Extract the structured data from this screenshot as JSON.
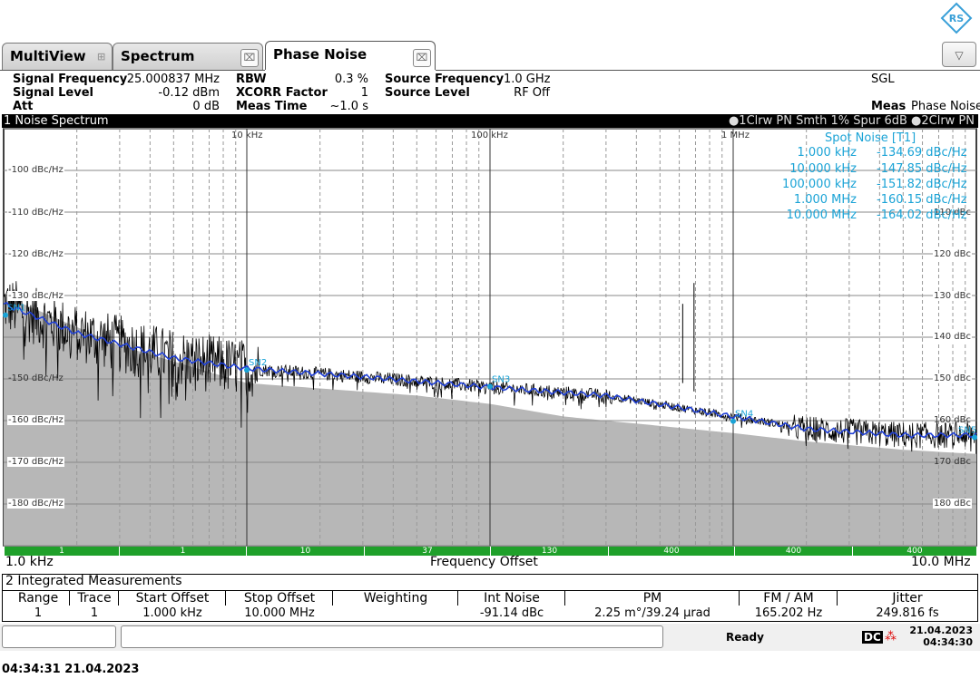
{
  "tabs": [
    {
      "label": "MultiView"
    },
    {
      "label": "Spectrum"
    },
    {
      "label": "Phase Noise"
    }
  ],
  "header": {
    "signal_frequency_label": "Signal Frequency",
    "signal_frequency_value": "25.000837 MHz",
    "signal_level_label": "Signal Level",
    "signal_level_value": "-0.12 dBm",
    "att_label": "Att",
    "att_value": "0 dB",
    "rbw_label": "RBW",
    "rbw_value": "0.3 %",
    "xcorr_label": "XCORR Factor",
    "xcorr_value": "1",
    "meas_time_label": "Meas Time",
    "meas_time_value": "~1.0 s",
    "source_frequency_label": "Source Frequency",
    "source_frequency_value": "1.0 GHz",
    "source_level_label": "Source Level",
    "source_level_value": "RF Off",
    "sgl": "SGL",
    "meas_label": "Meas",
    "meas_value": "Phase Noise"
  },
  "panel": {
    "title": "1 Noise Spectrum",
    "trace_legend": "●1Clrw PN Smth 1% Spur 6dB ●2Clrw PN"
  },
  "chart_data": {
    "type": "line",
    "xscale": "log",
    "xlim": [
      1000,
      10000000
    ],
    "ylim": [
      -190,
      -90
    ],
    "yunit": "dBc/Hz",
    "x_tick_labels": [
      "10 kHz",
      "100 kHz",
      "1 MHz"
    ],
    "y_tick_labels_left": [
      "-100 dBc/Hz",
      "-110 dBc/Hz",
      "-120 dBc/Hz",
      "-130 dBc/Hz",
      "-150 dBc/Hz",
      "-160 dBc/Hz",
      "-170 dBc/Hz",
      "-180 dBc/Hz"
    ],
    "y_tick_labels_right": [
      "110 dBc",
      "120 dBc",
      "130 dBc",
      "140 dBc",
      "150 dBc",
      "160 dBc",
      "170 dBc",
      "180 dBc"
    ],
    "x_start": "1.0 kHz",
    "x_stop": "10.0 MHz",
    "x_title": "Frequency Offset",
    "series": [
      {
        "name": "1",
        "values": [
          [
            1000,
            -132
          ],
          [
            2000,
            -139
          ],
          [
            5000,
            -145
          ],
          [
            10000,
            -147.5
          ],
          [
            30000,
            -149.5
          ],
          [
            100000,
            -152
          ],
          [
            300000,
            -154
          ],
          [
            1000000,
            -159
          ],
          [
            2000000,
            -162
          ],
          [
            5000000,
            -163.5
          ],
          [
            10000000,
            -163.5
          ]
        ]
      },
      {
        "name": "2",
        "values": [
          [
            1000,
            -130
          ],
          [
            3000,
            -142
          ],
          [
            10000,
            -151
          ],
          [
            50000,
            -154
          ],
          [
            100000,
            -156
          ],
          [
            200000,
            -159
          ],
          [
            1000000,
            -163
          ],
          [
            2000000,
            -165
          ],
          [
            5000000,
            -167
          ],
          [
            10000000,
            -168
          ]
        ]
      }
    ],
    "spot_markers": [
      {
        "label": "SN1",
        "x": 1000,
        "y": -134.69
      },
      {
        "label": "SN2",
        "x": 10000,
        "y": -147.85
      },
      {
        "label": "SN3",
        "x": 100000,
        "y": -151.82
      },
      {
        "label": "SN4",
        "x": 1000000,
        "y": -160.15
      },
      {
        "label": "SN5",
        "x": 10000000,
        "y": -164.02
      }
    ],
    "spot_noise_title": "Spot Noise [T1]",
    "spot_noise": [
      {
        "freq": "1.000 kHz",
        "value": "-134.69 dBc/Hz"
      },
      {
        "freq": "10.000 kHz",
        "value": "-147.85 dBc/Hz"
      },
      {
        "freq": "100.000 kHz",
        "value": "-151.82 dBc/Hz"
      },
      {
        "freq": "1.000 MHz",
        "value": "-160.15 dBc/Hz"
      },
      {
        "freq": "10.000 MHz",
        "value": "-164.02 dBc/Hz"
      }
    ],
    "xcorr_segments": [
      "1",
      "1",
      "10",
      "37",
      "130",
      "400",
      "400",
      "400"
    ]
  },
  "integrated": {
    "title": "2 Integrated Measurements",
    "headers": [
      "Range",
      "Trace",
      "Start Offset",
      "Stop Offset",
      "Weighting",
      "Int Noise",
      "PM",
      "FM / AM",
      "Jitter"
    ],
    "row": [
      "1",
      "1",
      "1.000 kHz",
      "10.000 MHz",
      "",
      "-91.14 dBc",
      "2.25 m°/39.24 µrad",
      "165.202 Hz",
      "249.816 fs"
    ]
  },
  "status": {
    "ready": "Ready",
    "dc": "DC",
    "date": "21.04.2023",
    "time": "04:34:30"
  },
  "footer": {
    "timestamp": "04:34:31  21.04.2023"
  },
  "colors": {
    "trace1": "#1f3fd6",
    "trace2": "#b7b7b7",
    "spot": "#1aa3d6",
    "xcorr_bar": "#1fa02a"
  }
}
